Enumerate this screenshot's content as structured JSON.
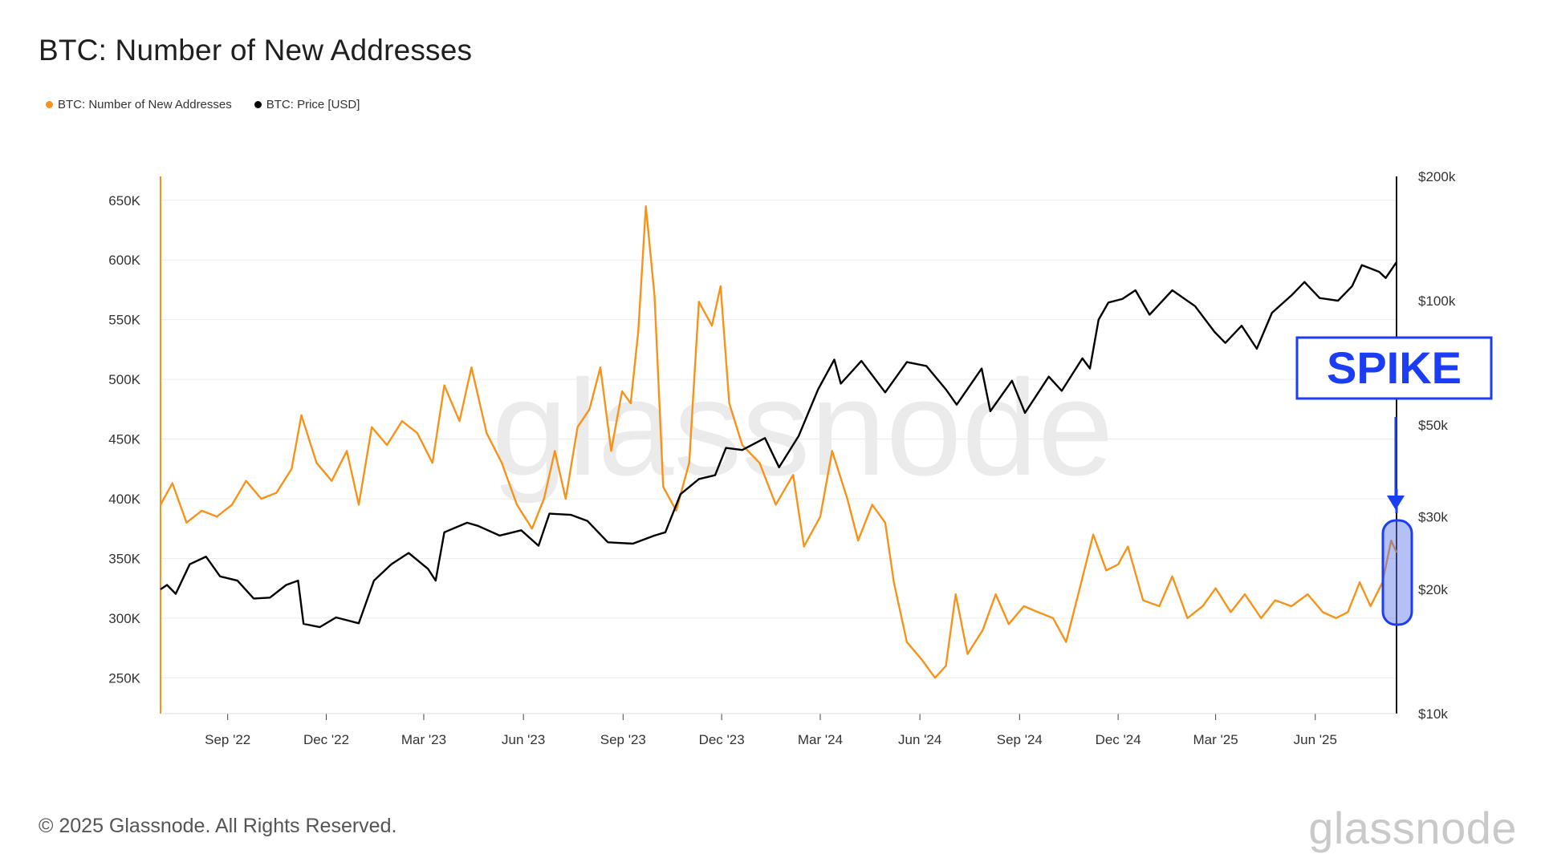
{
  "title": "BTC: Number of New Addresses",
  "legend": [
    {
      "label": "BTC: Number of New Addresses",
      "color": "#f7931a"
    },
    {
      "label": "BTC: Price [USD]",
      "color": "#000000"
    }
  ],
  "footer": "© 2025 Glassnode. All Rights Reserved.",
  "logo": "glassnode",
  "watermark": "glassnode",
  "annotation": {
    "label": "SPIKE",
    "color": "#1a3df5"
  },
  "colors": {
    "addresses": "#f7931a",
    "price": "#000000",
    "spike_fill": "#5a76e6",
    "grid": "#ececec"
  },
  "chart_data": {
    "type": "line",
    "title": "BTC: Number of New Addresses",
    "x_start": "2022-07-01",
    "x_end": "2025-08-15",
    "x_ticks": [
      "Sep '22",
      "Dec '22",
      "Mar '23",
      "Jun '23",
      "Sep '23",
      "Dec '23",
      "Mar '24",
      "Jun '24",
      "Sep '24",
      "Dec '24",
      "Mar '25",
      "Jun '25"
    ],
    "x_tick_dates": [
      "2022-09-01",
      "2022-12-01",
      "2023-03-01",
      "2023-06-01",
      "2023-09-01",
      "2023-12-01",
      "2024-03-01",
      "2024-06-01",
      "2024-09-01",
      "2024-12-01",
      "2025-03-01",
      "2025-06-01"
    ],
    "y_left": {
      "min": 220000,
      "max": 670000,
      "ticks": [
        250000,
        300000,
        350000,
        400000,
        450000,
        500000,
        550000,
        600000,
        650000
      ],
      "tick_labels": [
        "250K",
        "300K",
        "350K",
        "400K",
        "450K",
        "500K",
        "550K",
        "600K",
        "650K"
      ]
    },
    "y_right": {
      "scale": "log",
      "min": 10000,
      "max": 200000,
      "ticks": [
        10000,
        20000,
        30000,
        50000,
        100000,
        200000
      ],
      "tick_labels": [
        "$10k",
        "$20k",
        "$30k",
        "$50k",
        "$100k",
        "$200k"
      ]
    },
    "series": [
      {
        "name": "BTC: Number of New Addresses",
        "axis": "left",
        "color": "#f7931a",
        "points": [
          [
            "2022-07-01",
            395000
          ],
          [
            "2022-07-12",
            413000
          ],
          [
            "2022-07-25",
            380000
          ],
          [
            "2022-08-08",
            390000
          ],
          [
            "2022-08-22",
            385000
          ],
          [
            "2022-09-05",
            395000
          ],
          [
            "2022-09-18",
            415000
          ],
          [
            "2022-10-02",
            400000
          ],
          [
            "2022-10-16",
            405000
          ],
          [
            "2022-10-30",
            425000
          ],
          [
            "2022-11-08",
            470000
          ],
          [
            "2022-11-22",
            430000
          ],
          [
            "2022-12-06",
            415000
          ],
          [
            "2022-12-20",
            440000
          ],
          [
            "2022-12-31",
            395000
          ],
          [
            "2023-01-12",
            460000
          ],
          [
            "2023-01-26",
            445000
          ],
          [
            "2023-02-09",
            465000
          ],
          [
            "2023-02-23",
            455000
          ],
          [
            "2023-03-09",
            430000
          ],
          [
            "2023-03-20",
            495000
          ],
          [
            "2023-04-03",
            465000
          ],
          [
            "2023-04-14",
            510000
          ],
          [
            "2023-04-28",
            455000
          ],
          [
            "2023-05-12",
            430000
          ],
          [
            "2023-05-26",
            395000
          ],
          [
            "2023-06-09",
            375000
          ],
          [
            "2023-06-20",
            400000
          ],
          [
            "2023-06-30",
            440000
          ],
          [
            "2023-07-10",
            400000
          ],
          [
            "2023-07-21",
            460000
          ],
          [
            "2023-08-01",
            475000
          ],
          [
            "2023-08-11",
            510000
          ],
          [
            "2023-08-21",
            440000
          ],
          [
            "2023-08-31",
            490000
          ],
          [
            "2023-09-08",
            480000
          ],
          [
            "2023-09-15",
            540000
          ],
          [
            "2023-09-22",
            645000
          ],
          [
            "2023-09-30",
            570000
          ],
          [
            "2023-10-08",
            410000
          ],
          [
            "2023-10-20",
            390000
          ],
          [
            "2023-11-01",
            430000
          ],
          [
            "2023-11-10",
            565000
          ],
          [
            "2023-11-22",
            545000
          ],
          [
            "2023-11-30",
            578000
          ],
          [
            "2023-12-08",
            480000
          ],
          [
            "2023-12-20",
            445000
          ],
          [
            "2024-01-05",
            430000
          ],
          [
            "2024-01-20",
            395000
          ],
          [
            "2024-02-05",
            420000
          ],
          [
            "2024-02-15",
            360000
          ],
          [
            "2024-03-01",
            385000
          ],
          [
            "2024-03-12",
            440000
          ],
          [
            "2024-03-26",
            400000
          ],
          [
            "2024-04-05",
            365000
          ],
          [
            "2024-04-18",
            395000
          ],
          [
            "2024-04-30",
            380000
          ],
          [
            "2024-05-08",
            330000
          ],
          [
            "2024-05-20",
            280000
          ],
          [
            "2024-06-03",
            265000
          ],
          [
            "2024-06-15",
            250000
          ],
          [
            "2024-06-25",
            260000
          ],
          [
            "2024-07-04",
            320000
          ],
          [
            "2024-07-15",
            270000
          ],
          [
            "2024-07-29",
            290000
          ],
          [
            "2024-08-10",
            320000
          ],
          [
            "2024-08-22",
            295000
          ],
          [
            "2024-09-05",
            310000
          ],
          [
            "2024-09-18",
            305000
          ],
          [
            "2024-10-02",
            300000
          ],
          [
            "2024-10-14",
            280000
          ],
          [
            "2024-10-28",
            330000
          ],
          [
            "2024-11-08",
            370000
          ],
          [
            "2024-11-20",
            340000
          ],
          [
            "2024-12-01",
            345000
          ],
          [
            "2024-12-10",
            360000
          ],
          [
            "2024-12-24",
            315000
          ],
          [
            "2025-01-08",
            310000
          ],
          [
            "2025-01-20",
            335000
          ],
          [
            "2025-02-03",
            300000
          ],
          [
            "2025-02-17",
            310000
          ],
          [
            "2025-03-01",
            325000
          ],
          [
            "2025-03-15",
            305000
          ],
          [
            "2025-03-28",
            320000
          ],
          [
            "2025-04-12",
            300000
          ],
          [
            "2025-04-25",
            315000
          ],
          [
            "2025-05-10",
            310000
          ],
          [
            "2025-05-25",
            320000
          ],
          [
            "2025-06-08",
            305000
          ],
          [
            "2025-06-20",
            300000
          ],
          [
            "2025-07-01",
            305000
          ],
          [
            "2025-07-12",
            330000
          ],
          [
            "2025-07-22",
            310000
          ],
          [
            "2025-08-02",
            330000
          ],
          [
            "2025-08-10",
            365000
          ],
          [
            "2025-08-15",
            355000
          ]
        ]
      },
      {
        "name": "BTC: Price [USD]",
        "axis": "right",
        "color": "#000000",
        "points": [
          [
            "2022-07-01",
            20000
          ],
          [
            "2022-07-07",
            20500
          ],
          [
            "2022-07-15",
            19500
          ],
          [
            "2022-07-28",
            23000
          ],
          [
            "2022-08-12",
            24000
          ],
          [
            "2022-08-25",
            21500
          ],
          [
            "2022-09-10",
            21000
          ],
          [
            "2022-09-25",
            19000
          ],
          [
            "2022-10-10",
            19100
          ],
          [
            "2022-10-25",
            20500
          ],
          [
            "2022-11-05",
            21000
          ],
          [
            "2022-11-10",
            16500
          ],
          [
            "2022-11-25",
            16200
          ],
          [
            "2022-12-10",
            17100
          ],
          [
            "2022-12-31",
            16550
          ],
          [
            "2023-01-14",
            21000
          ],
          [
            "2023-01-30",
            23000
          ],
          [
            "2023-02-15",
            24500
          ],
          [
            "2023-03-05",
            22400
          ],
          [
            "2023-03-12",
            21000
          ],
          [
            "2023-03-20",
            27500
          ],
          [
            "2023-04-10",
            29000
          ],
          [
            "2023-04-20",
            28500
          ],
          [
            "2023-05-10",
            27000
          ],
          [
            "2023-05-30",
            27800
          ],
          [
            "2023-06-15",
            25500
          ],
          [
            "2023-06-25",
            30500
          ],
          [
            "2023-07-15",
            30300
          ],
          [
            "2023-07-30",
            29300
          ],
          [
            "2023-08-18",
            26000
          ],
          [
            "2023-09-10",
            25800
          ],
          [
            "2023-09-30",
            27000
          ],
          [
            "2023-10-10",
            27500
          ],
          [
            "2023-10-24",
            34000
          ],
          [
            "2023-11-10",
            37000
          ],
          [
            "2023-11-25",
            37800
          ],
          [
            "2023-12-05",
            44000
          ],
          [
            "2023-12-20",
            43500
          ],
          [
            "2024-01-10",
            46500
          ],
          [
            "2024-01-23",
            39500
          ],
          [
            "2024-02-10",
            47000
          ],
          [
            "2024-02-28",
            61000
          ],
          [
            "2024-03-14",
            72000
          ],
          [
            "2024-03-20",
            63000
          ],
          [
            "2024-04-08",
            71500
          ],
          [
            "2024-04-30",
            60000
          ],
          [
            "2024-05-20",
            71000
          ],
          [
            "2024-06-07",
            69500
          ],
          [
            "2024-06-25",
            61000
          ],
          [
            "2024-07-05",
            56000
          ],
          [
            "2024-07-28",
            68500
          ],
          [
            "2024-08-05",
            54000
          ],
          [
            "2024-08-25",
            64000
          ],
          [
            "2024-09-06",
            53500
          ],
          [
            "2024-09-28",
            65500
          ],
          [
            "2024-10-10",
            60500
          ],
          [
            "2024-10-29",
            72500
          ],
          [
            "2024-11-05",
            68500
          ],
          [
            "2024-11-13",
            90000
          ],
          [
            "2024-11-22",
            99000
          ],
          [
            "2024-12-05",
            101000
          ],
          [
            "2024-12-17",
            106000
          ],
          [
            "2024-12-30",
            92500
          ],
          [
            "2025-01-20",
            106000
          ],
          [
            "2025-02-10",
            97000
          ],
          [
            "2025-02-28",
            84000
          ],
          [
            "2025-03-10",
            79000
          ],
          [
            "2025-03-25",
            87000
          ],
          [
            "2025-04-08",
            76500
          ],
          [
            "2025-04-22",
            93500
          ],
          [
            "2025-05-10",
            103000
          ],
          [
            "2025-05-22",
            111000
          ],
          [
            "2025-06-05",
            101500
          ],
          [
            "2025-06-22",
            100000
          ],
          [
            "2025-07-05",
            108500
          ],
          [
            "2025-07-14",
            122000
          ],
          [
            "2025-07-30",
            117500
          ],
          [
            "2025-08-05",
            113500
          ],
          [
            "2025-08-15",
            124000
          ]
        ]
      }
    ]
  }
}
